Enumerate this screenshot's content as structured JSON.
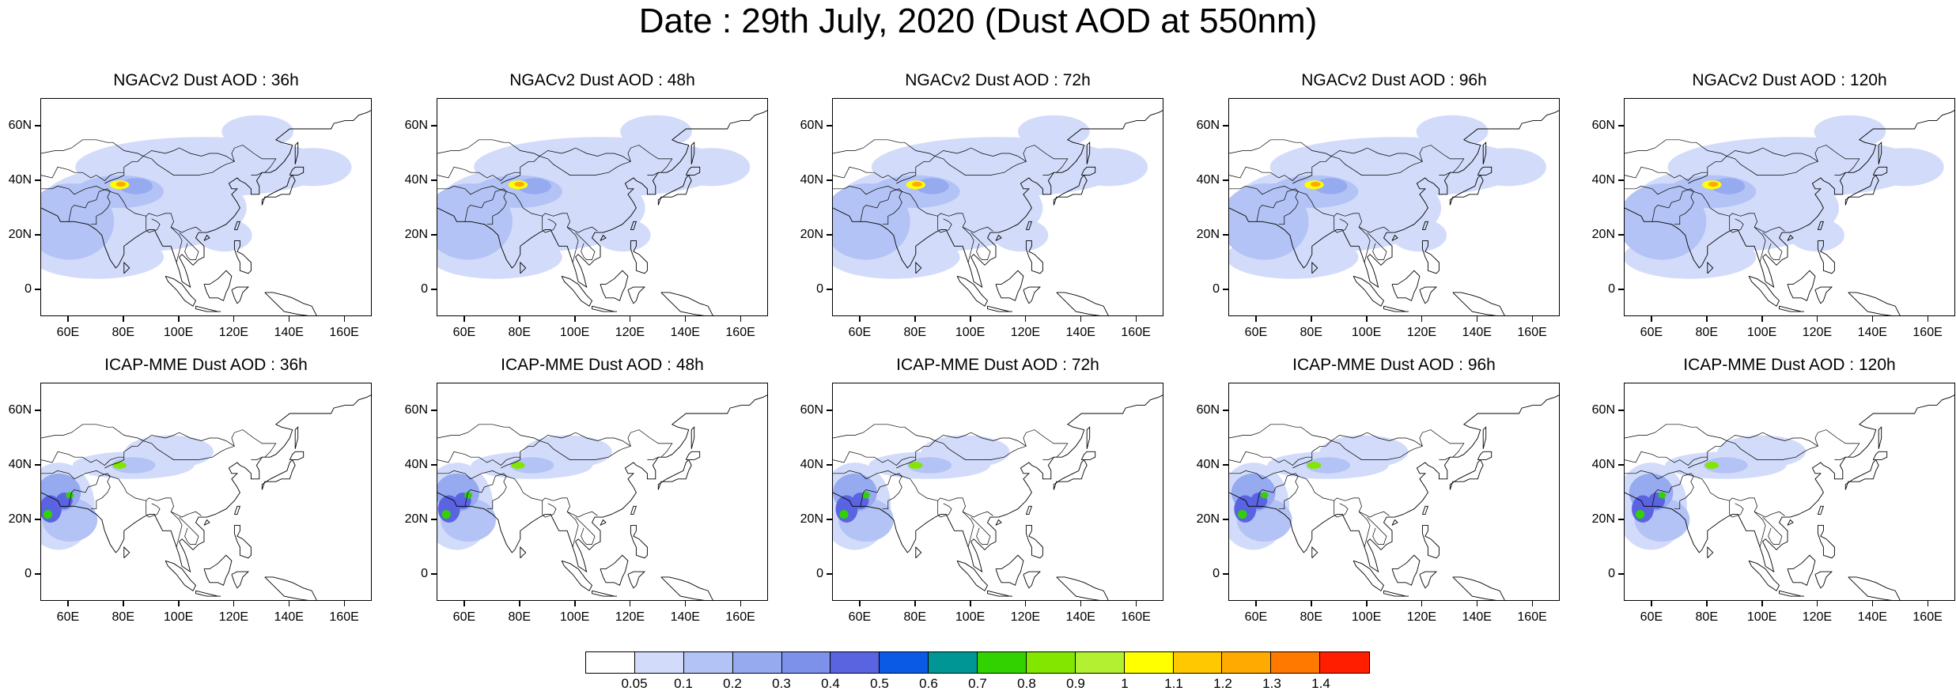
{
  "title": "Date : 29th July, 2020 (Dust AOD at 550nm)",
  "lat_ticks": [
    "60N",
    "40N",
    "20N",
    "0"
  ],
  "lon_ticks": [
    "60E",
    "80E",
    "100E",
    "120E",
    "140E",
    "160E"
  ],
  "map_extent": {
    "lon_min": 50,
    "lon_max": 170,
    "lat_min": -10,
    "lat_max": 70
  },
  "rows": [
    {
      "model": "NGACv2",
      "panels": [
        {
          "title": "NGACv2 Dust AOD : 36h",
          "lead_hours": 36
        },
        {
          "title": "NGACv2 Dust AOD : 48h",
          "lead_hours": 48
        },
        {
          "title": "NGACv2 Dust AOD : 72h",
          "lead_hours": 72
        },
        {
          "title": "NGACv2 Dust AOD : 96h",
          "lead_hours": 96
        },
        {
          "title": "NGACv2 Dust AOD : 120h",
          "lead_hours": 120
        }
      ]
    },
    {
      "model": "ICAP-MME",
      "panels": [
        {
          "title": "ICAP-MME Dust AOD : 36h",
          "lead_hours": 36
        },
        {
          "title": "ICAP-MME Dust AOD : 48h",
          "lead_hours": 48
        },
        {
          "title": "ICAP-MME Dust AOD : 72h",
          "lead_hours": 72
        },
        {
          "title": "ICAP-MME Dust AOD : 96h",
          "lead_hours": 96
        },
        {
          "title": "ICAP-MME Dust AOD : 120h",
          "lead_hours": 120
        }
      ]
    }
  ],
  "colorbar": {
    "labels": [
      "0.05",
      "0.1",
      "0.2",
      "0.3",
      "0.4",
      "0.5",
      "0.6",
      "0.7",
      "0.8",
      "0.9",
      "1",
      "1.1",
      "1.2",
      "1.3",
      "1.4"
    ],
    "colors": [
      "#ffffff",
      "#d2dcfa",
      "#b4c3f5",
      "#96aaf0",
      "#7d91eb",
      "#5a64e1",
      "#0a5ae6",
      "#009696",
      "#32d200",
      "#82e600",
      "#b4f032",
      "#ffff00",
      "#ffc800",
      "#ffaa00",
      "#ff7800",
      "#ff1e00"
    ]
  }
}
